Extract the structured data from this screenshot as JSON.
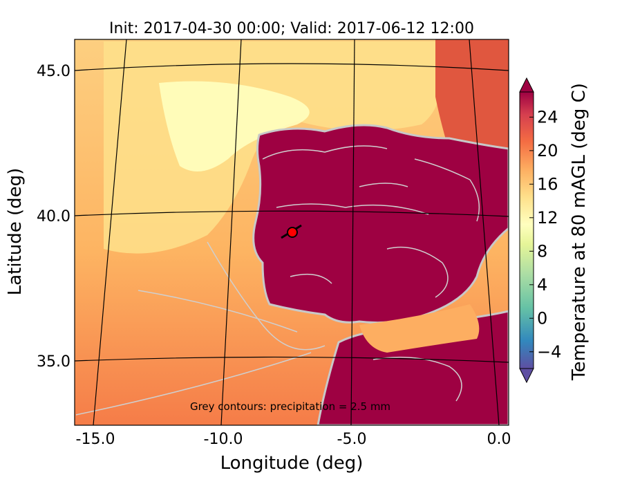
{
  "title": "Init: 2017-04-30 00:00; Valid: 2017-06-12 12:00",
  "axes": {
    "xlabel": "Longitude (deg)",
    "ylabel": "Latitude (deg)",
    "xticks": [
      "-15.0",
      "-10.0",
      "-5.0",
      "0.0"
    ],
    "yticks": [
      "35.0",
      "40.0",
      "45.0"
    ]
  },
  "annotation": "Grey contours: precipitation = 2.5 mm",
  "colorbar": {
    "label": "Temperature at 80 mAGL (deg C)",
    "ticks": [
      "−4",
      "0",
      "4",
      "8",
      "12",
      "16",
      "20",
      "24"
    ],
    "min": -6,
    "max": 27
  },
  "marker": {
    "lon": -7.6,
    "lat": 39.3,
    "color": "#ff0000"
  }
}
